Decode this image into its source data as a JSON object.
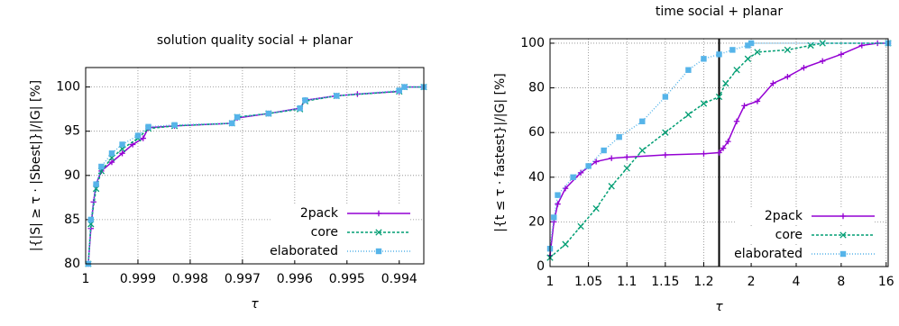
{
  "chart_data": [
    {
      "type": "line",
      "title": "solution quality social + planar",
      "x_label": "τ",
      "y_label": "|{|S| ≥ τ · |Sbest|}|/|G| [%]",
      "xlim": [
        1,
        0.99353
      ],
      "xticks": [
        1,
        0.999,
        0.998,
        0.997,
        0.996,
        0.995,
        0.994
      ],
      "ylim": [
        80,
        102.2
      ],
      "yticks": [
        80,
        85,
        90,
        95,
        100
      ],
      "grid": true,
      "legend": "lower right",
      "series": [
        {
          "name": "2pack",
          "color": "#9400d3",
          "marker": "plus",
          "x": [
            0.99995,
            0.9999,
            0.99985,
            0.9998,
            0.9997,
            0.9995,
            0.9993,
            0.9991,
            0.9989,
            0.9988,
            0.9983,
            0.9972,
            0.9971,
            0.9965,
            0.9959,
            0.9958,
            0.9952,
            0.9948,
            0.994,
            0.9939,
            0.99353
          ],
          "values": [
            80,
            84,
            87,
            89,
            90.5,
            91.5,
            92.5,
            93.5,
            94.2,
            95.4,
            95.6,
            95.9,
            96.5,
            97,
            97.6,
            98.5,
            99,
            99.2,
            99.5,
            100,
            100
          ]
        },
        {
          "name": "core",
          "color": "#009e73",
          "marker": "cross",
          "x": [
            0.99995,
            0.9999,
            0.9998,
            0.9997,
            0.9995,
            0.9993,
            0.999,
            0.9988,
            0.9983,
            0.9972,
            0.9971,
            0.9965,
            0.9959,
            0.9958,
            0.9952,
            0.994,
            0.9939,
            0.99353
          ],
          "values": [
            80,
            84.5,
            88.5,
            90.5,
            92,
            93,
            94.2,
            95.3,
            95.6,
            95.9,
            96.6,
            97,
            97.5,
            98.4,
            99,
            99.5,
            100,
            100
          ]
        },
        {
          "name": "elaborated",
          "color": "#56b4e9",
          "marker": "square",
          "x": [
            0.99995,
            0.9999,
            0.9998,
            0.9997,
            0.9995,
            0.9993,
            0.999,
            0.9988,
            0.9983,
            0.9972,
            0.9971,
            0.9965,
            0.9959,
            0.9958,
            0.9952,
            0.994,
            0.9939,
            0.99353
          ],
          "values": [
            80,
            85,
            89,
            91,
            92.5,
            93.5,
            94.5,
            95.5,
            95.7,
            95.9,
            96.6,
            97,
            97.6,
            98.5,
            99,
            99.6,
            100,
            100
          ]
        }
      ]
    },
    {
      "type": "line",
      "title": "time social + planar",
      "x_label": "τ",
      "y_label": "|{t ≤ τ · fastest}|/|G| [%]",
      "xlim": [
        1,
        16.5
      ],
      "xbreak": 1.22,
      "xticks": [
        1,
        1.05,
        1.1,
        1.15,
        1.2,
        2,
        4,
        8,
        16
      ],
      "ylim": [
        0,
        102
      ],
      "yticks": [
        0,
        20,
        40,
        60,
        80,
        100
      ],
      "grid": true,
      "legend": "lower right",
      "series": [
        {
          "name": "2pack",
          "color": "#9400d3",
          "marker": "plus",
          "x": [
            1,
            1.005,
            1.01,
            1.02,
            1.04,
            1.06,
            1.08,
            1.1,
            1.15,
            1.2,
            1.22,
            1.3,
            1.4,
            1.6,
            1.8,
            2.2,
            2.8,
            3.5,
            4.5,
            6,
            8,
            11,
            14,
            16.5
          ],
          "values": [
            5,
            20,
            28,
            35,
            42,
            47,
            48.5,
            49,
            50,
            50.5,
            51,
            53,
            56,
            65,
            72,
            74,
            82,
            85,
            89,
            92,
            95,
            99,
            100,
            100
          ]
        },
        {
          "name": "core",
          "color": "#009e73",
          "marker": "cross",
          "x": [
            1,
            1.02,
            1.04,
            1.06,
            1.08,
            1.1,
            1.12,
            1.15,
            1.18,
            1.2,
            1.22,
            1.35,
            1.6,
            1.9,
            2.2,
            3.5,
            5,
            6,
            16.5
          ],
          "values": [
            4,
            10,
            18,
            26,
            36,
            44,
            52,
            60,
            68,
            73,
            76,
            82,
            88,
            93,
            96,
            97,
            99,
            100,
            100
          ]
        },
        {
          "name": "elaborated",
          "color": "#56b4e9",
          "marker": "square",
          "x": [
            1,
            1.005,
            1.01,
            1.03,
            1.05,
            1.07,
            1.09,
            1.12,
            1.15,
            1.18,
            1.2,
            1.22,
            1.5,
            1.9,
            2,
            16.5
          ],
          "values": [
            8,
            22,
            32,
            40,
            45,
            52,
            58,
            65,
            76,
            88,
            93,
            95,
            97,
            99,
            100,
            100
          ]
        }
      ]
    }
  ]
}
